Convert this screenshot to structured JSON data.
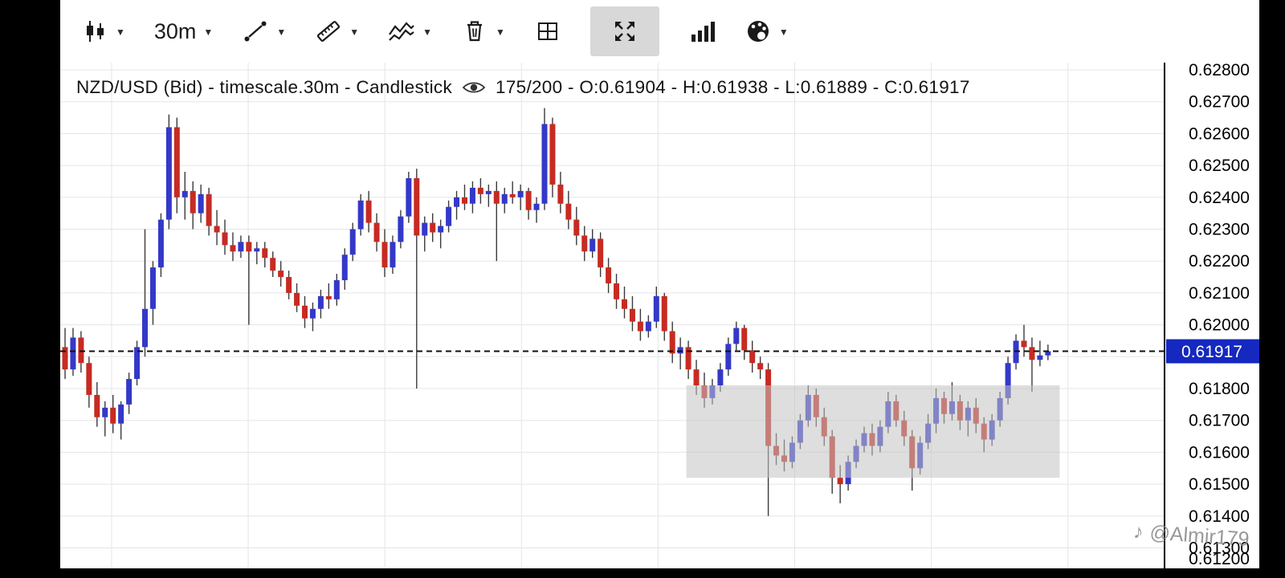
{
  "glyphs": {
    "caret": "▼",
    "note": "♪"
  },
  "toolbar": {
    "timeframe_label": "30m",
    "items": [
      "chart-type",
      "timeframe",
      "trendline",
      "ruler",
      "indicators",
      "delete",
      "layout",
      "fullscreen",
      "volume",
      "theme"
    ]
  },
  "chart": {
    "title": "NZD/USD (Bid) - timescale.30m - Candlestick",
    "bars_info": "175/200 - O:0.61904 - H:0.61938 - L:0.61889 - C:0.61917",
    "price_tag": "0.61917",
    "watermark": "@Almir179"
  },
  "chart_data": {
    "type": "candlestick",
    "symbol": "NZD/USD (Bid)",
    "timeframe": "30m",
    "bars_visible": 175,
    "bars_total": 200,
    "current": {
      "open": 0.61904,
      "high": 0.61938,
      "low": 0.61889,
      "close": 0.61917
    },
    "price_line": 0.61917,
    "y_axis": {
      "min": 0.612,
      "max": 0.628,
      "step": 0.001,
      "labels": [
        "0.62800",
        "0.62700",
        "0.62600",
        "0.62500",
        "0.62400",
        "0.62300",
        "0.62200",
        "0.62100",
        "0.62000",
        "0.61900",
        "0.61800",
        "0.61700",
        "0.61600",
        "0.61500",
        "0.61400",
        "0.61300",
        "0.61200"
      ]
    },
    "highlight_zone": {
      "price_top": 0.6181,
      "price_bottom": 0.6152,
      "x_start_frac": 0.567,
      "x_end_frac": 0.905
    },
    "colors": {
      "up": "#3438c8",
      "down": "#c62b22",
      "wick": "#3a3a3a",
      "grid": "#e5e5e5",
      "axis_line": "#000000",
      "price_line": "#111111",
      "price_tag_bg": "#1528c0",
      "price_tag_text": "#ffffff",
      "zone": "#c2c2c2"
    },
    "candles": [
      [
        0.6193,
        0.6199,
        0.6183,
        0.6186
      ],
      [
        0.6186,
        0.6199,
        0.6184,
        0.6196
      ],
      [
        0.6196,
        0.6198,
        0.6185,
        0.6188
      ],
      [
        0.6188,
        0.619,
        0.6174,
        0.6178
      ],
      [
        0.6178,
        0.6182,
        0.6168,
        0.6171
      ],
      [
        0.6171,
        0.6176,
        0.6165,
        0.6174
      ],
      [
        0.6174,
        0.6178,
        0.6166,
        0.6169
      ],
      [
        0.6169,
        0.6176,
        0.6164,
        0.6175
      ],
      [
        0.6175,
        0.6185,
        0.6172,
        0.6183
      ],
      [
        0.6183,
        0.6195,
        0.6181,
        0.6193
      ],
      [
        0.6193,
        0.623,
        0.619,
        0.6205
      ],
      [
        0.6205,
        0.622,
        0.62,
        0.6218
      ],
      [
        0.6218,
        0.6235,
        0.6215,
        0.6233
      ],
      [
        0.6233,
        0.6266,
        0.623,
        0.6262
      ],
      [
        0.6262,
        0.6265,
        0.6235,
        0.624
      ],
      [
        0.624,
        0.6248,
        0.6233,
        0.6242
      ],
      [
        0.6242,
        0.6245,
        0.623,
        0.6235
      ],
      [
        0.6235,
        0.6244,
        0.6232,
        0.6241
      ],
      [
        0.6241,
        0.6243,
        0.6228,
        0.6231
      ],
      [
        0.6231,
        0.6236,
        0.6225,
        0.6229
      ],
      [
        0.6229,
        0.6233,
        0.6222,
        0.6225
      ],
      [
        0.6225,
        0.6229,
        0.622,
        0.6223
      ],
      [
        0.6223,
        0.6228,
        0.6221,
        0.6226
      ],
      [
        0.6226,
        0.6228,
        0.62,
        0.6223
      ],
      [
        0.6223,
        0.6226,
        0.6219,
        0.6224
      ],
      [
        0.6224,
        0.6226,
        0.6218,
        0.6221
      ],
      [
        0.6221,
        0.6223,
        0.6215,
        0.6217
      ],
      [
        0.6217,
        0.622,
        0.6212,
        0.6215
      ],
      [
        0.6215,
        0.6217,
        0.6208,
        0.621
      ],
      [
        0.621,
        0.6213,
        0.6204,
        0.6206
      ],
      [
        0.6206,
        0.6209,
        0.6199,
        0.6202
      ],
      [
        0.6202,
        0.6207,
        0.6198,
        0.6205
      ],
      [
        0.6205,
        0.6211,
        0.6202,
        0.6209
      ],
      [
        0.6209,
        0.6213,
        0.6205,
        0.6208
      ],
      [
        0.6208,
        0.6216,
        0.6206,
        0.6214
      ],
      [
        0.6214,
        0.6224,
        0.6211,
        0.6222
      ],
      [
        0.6222,
        0.6232,
        0.622,
        0.623
      ],
      [
        0.623,
        0.6241,
        0.6228,
        0.6239
      ],
      [
        0.6239,
        0.6242,
        0.6229,
        0.6232
      ],
      [
        0.6232,
        0.6235,
        0.6223,
        0.6226
      ],
      [
        0.6226,
        0.623,
        0.6215,
        0.6218
      ],
      [
        0.6218,
        0.6228,
        0.6216,
        0.6226
      ],
      [
        0.6226,
        0.6236,
        0.6224,
        0.6234
      ],
      [
        0.6234,
        0.6248,
        0.6232,
        0.6246
      ],
      [
        0.6246,
        0.6249,
        0.618,
        0.6228
      ],
      [
        0.6228,
        0.6234,
        0.6223,
        0.6232
      ],
      [
        0.6232,
        0.6235,
        0.6226,
        0.6229
      ],
      [
        0.6229,
        0.6233,
        0.6224,
        0.6231
      ],
      [
        0.6231,
        0.6239,
        0.6229,
        0.6237
      ],
      [
        0.6237,
        0.6242,
        0.6233,
        0.624
      ],
      [
        0.624,
        0.6244,
        0.6236,
        0.6238
      ],
      [
        0.6238,
        0.6245,
        0.6235,
        0.6243
      ],
      [
        0.6243,
        0.6246,
        0.6238,
        0.6241
      ],
      [
        0.6241,
        0.6244,
        0.6237,
        0.6242
      ],
      [
        0.6242,
        0.6245,
        0.622,
        0.6238
      ],
      [
        0.6238,
        0.6243,
        0.6235,
        0.6241
      ],
      [
        0.6241,
        0.6245,
        0.6238,
        0.624
      ],
      [
        0.624,
        0.6244,
        0.6236,
        0.6242
      ],
      [
        0.6242,
        0.6243,
        0.6233,
        0.6236
      ],
      [
        0.6236,
        0.624,
        0.6232,
        0.6238
      ],
      [
        0.6238,
        0.6268,
        0.6236,
        0.6263
      ],
      [
        0.6263,
        0.6265,
        0.624,
        0.6244
      ],
      [
        0.6244,
        0.6248,
        0.6235,
        0.6238
      ],
      [
        0.6238,
        0.6242,
        0.623,
        0.6233
      ],
      [
        0.6233,
        0.6237,
        0.6225,
        0.6228
      ],
      [
        0.6228,
        0.6231,
        0.622,
        0.6223
      ],
      [
        0.6223,
        0.623,
        0.6221,
        0.6227
      ],
      [
        0.6227,
        0.6229,
        0.6215,
        0.6218
      ],
      [
        0.6218,
        0.6221,
        0.621,
        0.6213
      ],
      [
        0.6213,
        0.6216,
        0.6205,
        0.6208
      ],
      [
        0.6208,
        0.6212,
        0.6202,
        0.6205
      ],
      [
        0.6205,
        0.6209,
        0.6198,
        0.6201
      ],
      [
        0.6201,
        0.6205,
        0.6195,
        0.6198
      ],
      [
        0.6198,
        0.6203,
        0.6196,
        0.6201
      ],
      [
        0.6201,
        0.6212,
        0.6199,
        0.6209
      ],
      [
        0.6209,
        0.621,
        0.6195,
        0.6198
      ],
      [
        0.6198,
        0.6201,
        0.6188,
        0.6191
      ],
      [
        0.6191,
        0.6196,
        0.6186,
        0.6193
      ],
      [
        0.6193,
        0.6195,
        0.6183,
        0.6186
      ],
      [
        0.6186,
        0.6189,
        0.6178,
        0.6181
      ],
      [
        0.6181,
        0.6185,
        0.6174,
        0.6177
      ],
      [
        0.6177,
        0.6183,
        0.6175,
        0.6181
      ],
      [
        0.6181,
        0.6188,
        0.6179,
        0.6186
      ],
      [
        0.6186,
        0.6196,
        0.6184,
        0.6194
      ],
      [
        0.6194,
        0.6201,
        0.6192,
        0.6199
      ],
      [
        0.6199,
        0.62,
        0.6189,
        0.6192
      ],
      [
        0.6192,
        0.6195,
        0.6185,
        0.6188
      ],
      [
        0.6188,
        0.619,
        0.6183,
        0.6186
      ],
      [
        0.6186,
        0.6188,
        0.614,
        0.6162
      ],
      [
        0.6162,
        0.6166,
        0.6156,
        0.6159
      ],
      [
        0.6159,
        0.6164,
        0.6154,
        0.6157
      ],
      [
        0.6157,
        0.6165,
        0.6155,
        0.6163
      ],
      [
        0.6163,
        0.6172,
        0.6161,
        0.617
      ],
      [
        0.617,
        0.6181,
        0.6168,
        0.6178
      ],
      [
        0.6178,
        0.618,
        0.6168,
        0.6171
      ],
      [
        0.6171,
        0.6174,
        0.6162,
        0.6165
      ],
      [
        0.6165,
        0.6167,
        0.6147,
        0.6152
      ],
      [
        0.6152,
        0.6156,
        0.6144,
        0.615
      ],
      [
        0.615,
        0.6159,
        0.6148,
        0.6157
      ],
      [
        0.6157,
        0.6164,
        0.6155,
        0.6162
      ],
      [
        0.6162,
        0.6168,
        0.616,
        0.6166
      ],
      [
        0.6166,
        0.6169,
        0.6159,
        0.6162
      ],
      [
        0.6162,
        0.617,
        0.616,
        0.6168
      ],
      [
        0.6168,
        0.6179,
        0.6166,
        0.6176
      ],
      [
        0.6176,
        0.6178,
        0.6168,
        0.617
      ],
      [
        0.617,
        0.6173,
        0.6162,
        0.6165
      ],
      [
        0.6165,
        0.6167,
        0.6148,
        0.6155
      ],
      [
        0.6155,
        0.6165,
        0.6153,
        0.6163
      ],
      [
        0.6163,
        0.6172,
        0.6161,
        0.6169
      ],
      [
        0.6169,
        0.618,
        0.6166,
        0.6177
      ],
      [
        0.6177,
        0.6179,
        0.6169,
        0.6172
      ],
      [
        0.6172,
        0.6182,
        0.617,
        0.6176
      ],
      [
        0.6176,
        0.6178,
        0.6167,
        0.617
      ],
      [
        0.617,
        0.6176,
        0.6165,
        0.6174
      ],
      [
        0.6174,
        0.6177,
        0.6166,
        0.6169
      ],
      [
        0.6169,
        0.6171,
        0.616,
        0.6164
      ],
      [
        0.6164,
        0.6172,
        0.6162,
        0.617
      ],
      [
        0.617,
        0.6179,
        0.6168,
        0.6177
      ],
      [
        0.6177,
        0.619,
        0.6175,
        0.6188
      ],
      [
        0.6188,
        0.6197,
        0.6186,
        0.6195
      ],
      [
        0.6195,
        0.62,
        0.619,
        0.6193
      ],
      [
        0.6193,
        0.6196,
        0.6179,
        0.6189
      ],
      [
        0.6189,
        0.6195,
        0.6187,
        0.61904
      ],
      [
        0.61904,
        0.61938,
        0.61889,
        0.61917
      ]
    ]
  }
}
